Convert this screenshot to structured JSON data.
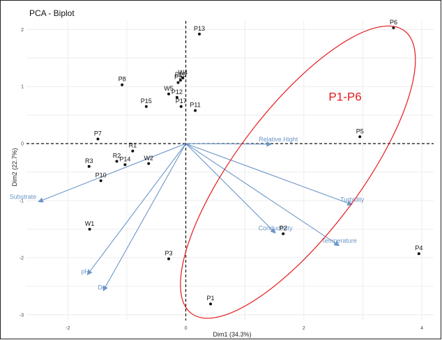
{
  "chart_data": {
    "type": "scatter",
    "title": "PCA - Biplot",
    "xlabel": "Dim1 (34.3%)",
    "ylabel": "Dim2 (22.7%)",
    "xlim": [
      -2.7,
      4.2
    ],
    "ylim": [
      -3.1,
      2.15
    ],
    "x_ticks": [
      -2,
      0,
      2,
      4
    ],
    "y_ticks": [
      -3,
      -2,
      -1,
      0,
      1,
      2
    ],
    "grid": true,
    "points": [
      {
        "label": "P13",
        "x": 0.23,
        "y": 1.92
      },
      {
        "label": "P6",
        "x": 3.52,
        "y": 2.03
      },
      {
        "label": "P8",
        "x": -1.08,
        "y": 1.03
      },
      {
        "label": "W4",
        "x": -0.05,
        "y": 1.15
      },
      {
        "label": "P16",
        "x": -0.09,
        "y": 1.11
      },
      {
        "label": "P9",
        "x": -0.13,
        "y": 1.07
      },
      {
        "label": "W5",
        "x": -0.29,
        "y": 0.87
      },
      {
        "label": "P12",
        "x": -0.15,
        "y": 0.81
      },
      {
        "label": "P15",
        "x": -0.67,
        "y": 0.65
      },
      {
        "label": "P17",
        "x": -0.08,
        "y": 0.65
      },
      {
        "label": "P11",
        "x": 0.16,
        "y": 0.58
      },
      {
        "label": "P5",
        "x": 2.95,
        "y": 0.12
      },
      {
        "label": "P7",
        "x": -1.49,
        "y": 0.08
      },
      {
        "label": "R1",
        "x": -0.9,
        "y": -0.13
      },
      {
        "label": "R2",
        "x": -1.17,
        "y": -0.31
      },
      {
        "label": "P14",
        "x": -1.03,
        "y": -0.37
      },
      {
        "label": "W2",
        "x": -0.63,
        "y": -0.35
      },
      {
        "label": "R3",
        "x": -1.64,
        "y": -0.4
      },
      {
        "label": "P10",
        "x": -1.44,
        "y": -0.65
      },
      {
        "label": "W1",
        "x": -1.63,
        "y": -1.5
      },
      {
        "label": "P2",
        "x": 1.65,
        "y": -1.58
      },
      {
        "label": "P4",
        "x": 3.95,
        "y": -1.93
      },
      {
        "label": "P3",
        "x": -0.29,
        "y": -2.02
      },
      {
        "label": "P1",
        "x": 0.42,
        "y": -2.81
      }
    ],
    "variables": [
      {
        "label": "Relative.Hight",
        "x": 1.45,
        "y": -0.01
      },
      {
        "label": "Turbidity",
        "x": 2.82,
        "y": -1.07
      },
      {
        "label": "Temperature",
        "x": 2.6,
        "y": -1.79
      },
      {
        "label": "Conductivity",
        "x": 1.52,
        "y": -1.57
      },
      {
        "label": "Substrate",
        "x": -2.5,
        "y": -1.02
      },
      {
        "label": "pH",
        "x": -1.67,
        "y": -2.3
      },
      {
        "label": "Do",
        "x": -1.4,
        "y": -2.58
      }
    ],
    "annotation": {
      "label": "P1-P6",
      "color": "#e41a1c",
      "ellipse": {
        "cx": 1.9,
        "cy": -0.5,
        "rx": 3.0,
        "ry": 1.05,
        "angle_deg": 53
      }
    },
    "colors": {
      "points": "#111111",
      "arrows": "#6b96c8",
      "grid": "#ececec",
      "ellipse": "#e41a1c"
    }
  }
}
